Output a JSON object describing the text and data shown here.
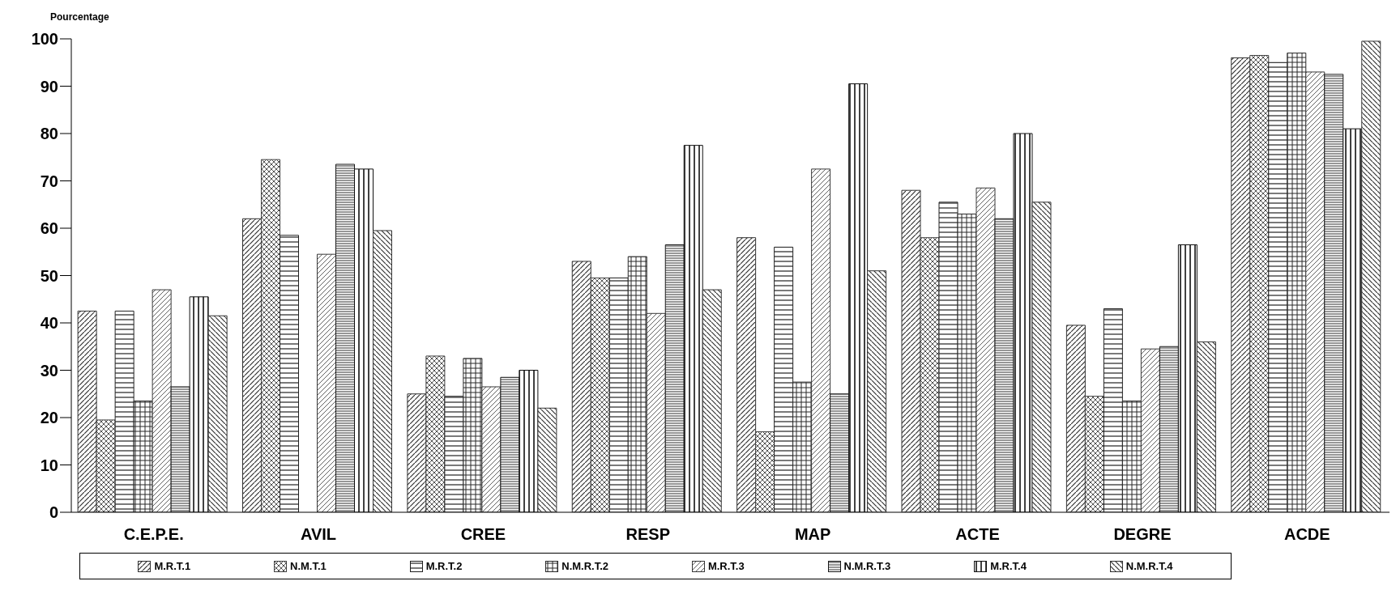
{
  "chart_data": {
    "type": "bar",
    "ylabel": "Pourcentage",
    "categories": [
      "C.E.P.E.",
      "AVIL",
      "CREE",
      "RESP",
      "MAP",
      "ACTE",
      "DEGRE",
      "ACDE"
    ],
    "series": [
      {
        "name": "M.R.T.1",
        "color": "#303030",
        "values": [
          42.5,
          62,
          25,
          53,
          58,
          68,
          39.5,
          96
        ]
      },
      {
        "name": "N.M.T.1",
        "color": "#404040",
        "values": [
          19.5,
          74.5,
          33,
          49.5,
          17,
          58,
          24.5,
          96.5
        ]
      },
      {
        "name": "M.R.T.2",
        "color": "#202020",
        "values": [
          42.5,
          58.5,
          24.5,
          49.5,
          56,
          65.5,
          43,
          95
        ]
      },
      {
        "name": "N.M.R.T.2",
        "color": "#282828",
        "values": [
          23.5,
          null,
          32.5,
          54,
          27.5,
          63,
          23.5,
          97
        ]
      },
      {
        "name": "M.R.T.3",
        "color": "#383838",
        "values": [
          47,
          54.5,
          26.5,
          42,
          72.5,
          68.5,
          34.5,
          93
        ]
      },
      {
        "name": "N.M.R.T.3",
        "color": "#181818",
        "values": [
          26.5,
          73.5,
          28.5,
          56.5,
          25,
          62,
          35,
          92.5
        ]
      },
      {
        "name": "M.R.T.4",
        "color": "#101010",
        "values": [
          45.5,
          72.5,
          30,
          77.5,
          90.5,
          80,
          56.5,
          81
        ]
      },
      {
        "name": "N.M.R.T.4",
        "color": "#343434",
        "values": [
          41.5,
          59.5,
          22,
          47,
          51,
          65.5,
          36,
          99.5
        ]
      }
    ],
    "ylim": [
      0,
      100
    ],
    "yticks": [
      0,
      10,
      20,
      30,
      40,
      50,
      60,
      70,
      80,
      90,
      100
    ],
    "grid": false,
    "legend": "bottom"
  }
}
